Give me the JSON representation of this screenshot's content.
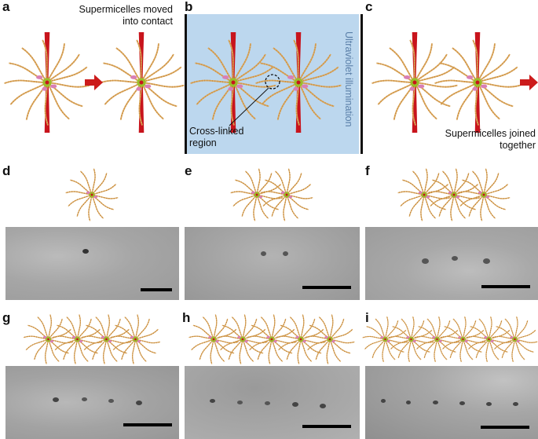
{
  "panels": {
    "a": {
      "label": "a",
      "annotation_line1": "Supermicelles moved",
      "annotation_line2": "into contact"
    },
    "b": {
      "label": "b",
      "uv_text": "Ultraviolet illumination",
      "crosslink_line1": "Cross-linked",
      "crosslink_line2": "region"
    },
    "c": {
      "label": "c",
      "annotation_line1": "Supermicelles joined",
      "annotation_line2": "together"
    },
    "d": {
      "label": "d",
      "micelle_count": 1
    },
    "e": {
      "label": "e",
      "micelle_count": 2
    },
    "f": {
      "label": "f",
      "micelle_count": 3
    },
    "g": {
      "label": "g",
      "micelle_count": 4
    },
    "h": {
      "label": "h",
      "micelle_count": 5
    },
    "i": {
      "label": "i",
      "micelle_count": 6
    }
  },
  "colors": {
    "arrow": "#cc1b1b",
    "rod": "#c8141c",
    "arm": "#d9a55a",
    "arm_dot": "#c98a3c",
    "core": "#9bbd2a",
    "pink": "#d97fb5",
    "uv_box": "#bcd7ee",
    "micrograph_bg": "#a9a9a9"
  }
}
